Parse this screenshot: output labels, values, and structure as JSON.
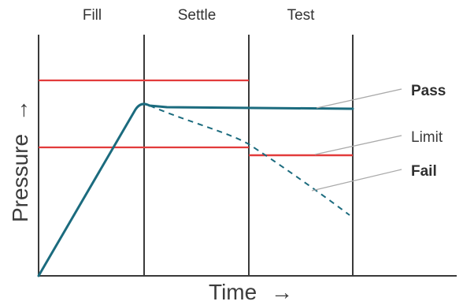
{
  "phases": [
    "Fill",
    "Settle",
    "Test"
  ],
  "axes": {
    "x_label": "Time",
    "y_label": "Pressure",
    "arrow": "→"
  },
  "callouts": {
    "pass": "Pass",
    "limit": "Limit",
    "fail": "Fail"
  },
  "colors": {
    "curve": "#1b6b7e",
    "limit_lines": "#e23b3b",
    "axes_and_dividers": "#3a3a3a",
    "leader_lines": "#aaaaaa",
    "text": "#333333"
  },
  "curves": {
    "pass": "solid",
    "fail": "dashed"
  }
}
